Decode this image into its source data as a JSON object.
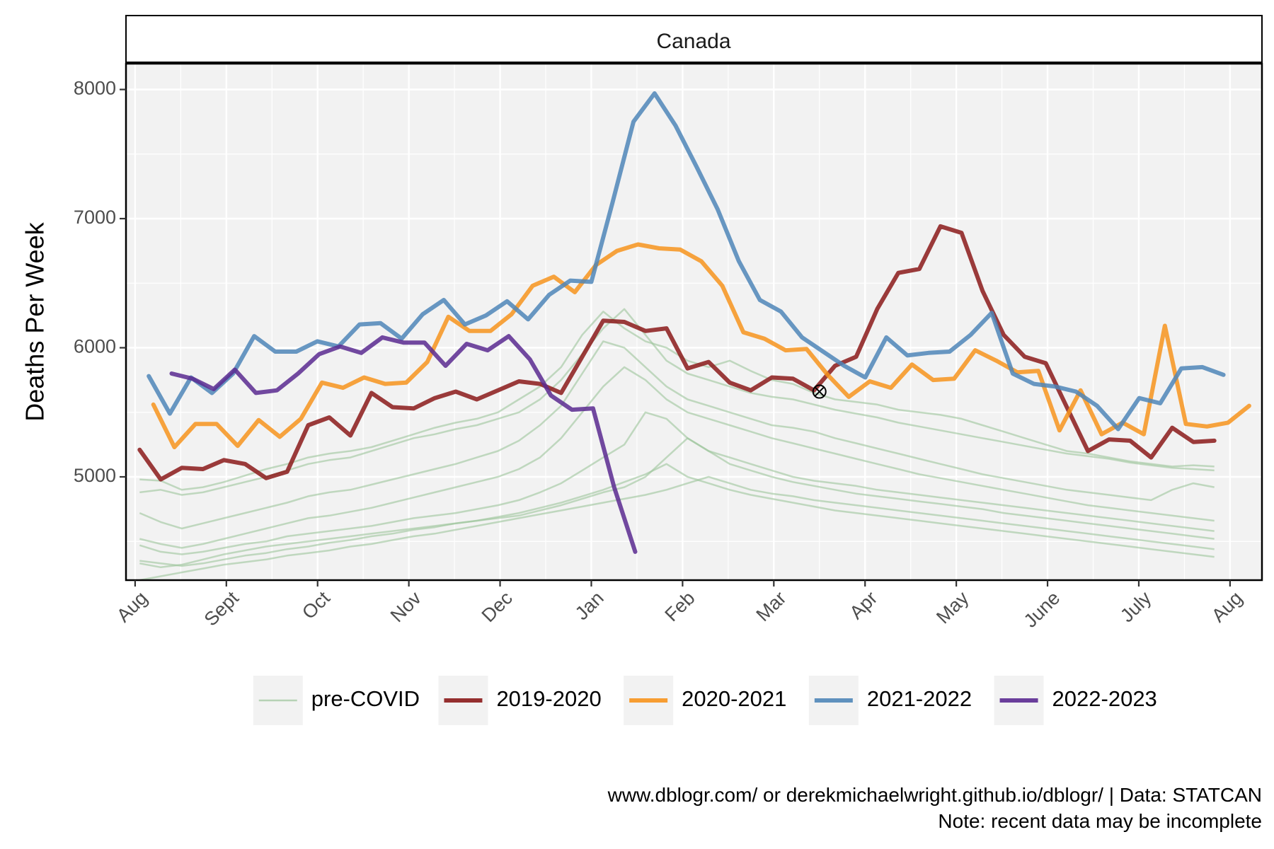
{
  "chart_data": {
    "type": "line",
    "facet_title": "Canada",
    "ylabel": "Deaths Per Week",
    "xlabel": "",
    "ylim": [
      4200,
      8200
    ],
    "yticks": [
      5000,
      6000,
      7000,
      8000
    ],
    "xlim": [
      -0.1,
      12.35
    ],
    "x_month_ticks": [
      {
        "pos": 0,
        "label": "Aug"
      },
      {
        "pos": 1,
        "label": "Sept"
      },
      {
        "pos": 2,
        "label": "Oct"
      },
      {
        "pos": 3,
        "label": "Nov"
      },
      {
        "pos": 4,
        "label": "Dec"
      },
      {
        "pos": 5,
        "label": "Jan"
      },
      {
        "pos": 6,
        "label": "Feb"
      },
      {
        "pos": 7,
        "label": "Mar"
      },
      {
        "pos": 8,
        "label": "Apr"
      },
      {
        "pos": 9,
        "label": "May"
      },
      {
        "pos": 10,
        "label": "June"
      },
      {
        "pos": 11,
        "label": "July"
      },
      {
        "pos": 12,
        "label": "Aug"
      }
    ],
    "grid": true,
    "legend_position": "bottom",
    "legend": [
      {
        "label": "pre-COVID",
        "color": "#9dc49b"
      },
      {
        "label": "2019-2020",
        "color": "#8b1a1a"
      },
      {
        "label": "2020-2021",
        "color": "#f7941d"
      },
      {
        "label": "2021-2022",
        "color": "#4f86b8"
      },
      {
        "label": "2022-2023",
        "color": "#5b2a91"
      }
    ],
    "pre_covid_series": [
      {
        "x0": 0.05,
        "values": [
          4980,
          4970,
          4900,
          4920,
          4960,
          5010,
          5060,
          5100,
          5150,
          5180,
          5200,
          5230,
          5280,
          5330,
          5380,
          5420,
          5450,
          5500,
          5600,
          5700,
          5850,
          6100,
          6280,
          6150,
          6050,
          6000,
          5900,
          5850,
          5900,
          5820,
          5750,
          5720,
          5650,
          5600,
          5580,
          5560,
          5520,
          5500,
          5480,
          5450,
          5400,
          5350,
          5300,
          5250,
          5200,
          5180,
          5150,
          5120,
          5100,
          5080,
          5090,
          5080
        ]
      },
      {
        "x0": 0.05,
        "values": [
          4880,
          4900,
          4860,
          4880,
          4920,
          4960,
          5000,
          5050,
          5100,
          5130,
          5150,
          5200,
          5250,
          5300,
          5330,
          5370,
          5400,
          5450,
          5500,
          5600,
          5750,
          5950,
          6150,
          6300,
          6100,
          5900,
          5800,
          5750,
          5700,
          5650,
          5620,
          5600,
          5560,
          5520,
          5490,
          5460,
          5420,
          5390,
          5360,
          5330,
          5300,
          5270,
          5240,
          5210,
          5180,
          5160,
          5140,
          5110,
          5090,
          5070,
          5060,
          5050
        ]
      },
      {
        "x0": 0.05,
        "values": [
          4720,
          4650,
          4600,
          4640,
          4680,
          4720,
          4760,
          4800,
          4850,
          4880,
          4900,
          4940,
          4980,
          5020,
          5060,
          5100,
          5150,
          5200,
          5280,
          5400,
          5550,
          5800,
          6050,
          6000,
          5850,
          5700,
          5600,
          5550,
          5500,
          5450,
          5400,
          5380,
          5350,
          5300,
          5260,
          5220,
          5180,
          5140,
          5100,
          5060,
          5020,
          4990,
          4960,
          4930,
          4900,
          4880,
          4860,
          4840,
          4820,
          4900,
          4950,
          4920
        ]
      },
      {
        "x0": 0.05,
        "values": [
          4520,
          4480,
          4450,
          4480,
          4520,
          4560,
          4600,
          4640,
          4680,
          4700,
          4730,
          4760,
          4800,
          4840,
          4880,
          4920,
          4960,
          5000,
          5060,
          5150,
          5300,
          5500,
          5700,
          5850,
          5750,
          5600,
          5500,
          5450,
          5400,
          5350,
          5300,
          5260,
          5220,
          5180,
          5140,
          5100,
          5060,
          5020,
          4990,
          4960,
          4930,
          4900,
          4870,
          4840,
          4810,
          4780,
          4760,
          4740,
          4720,
          4700,
          4680,
          4660
        ]
      },
      {
        "x0": 0.05,
        "values": [
          4470,
          4420,
          4400,
          4420,
          4450,
          4480,
          4500,
          4540,
          4560,
          4580,
          4600,
          4620,
          4650,
          4680,
          4700,
          4720,
          4750,
          4780,
          4820,
          4880,
          4950,
          5050,
          5150,
          5250,
          5500,
          5450,
          5300,
          5200,
          5150,
          5100,
          5050,
          5000,
          4970,
          4950,
          4930,
          4900,
          4880,
          4860,
          4840,
          4820,
          4800,
          4780,
          4760,
          4740,
          4720,
          4700,
          4680,
          4660,
          4640,
          4620,
          4600,
          4580
        ]
      },
      {
        "x0": 0.05,
        "values": [
          4330,
          4300,
          4320,
          4360,
          4400,
          4430,
          4460,
          4480,
          4500,
          4520,
          4540,
          4560,
          4580,
          4600,
          4620,
          4640,
          4660,
          4680,
          4700,
          4740,
          4780,
          4830,
          4880,
          4920,
          5000,
          5150,
          5300,
          5200,
          5100,
          5050,
          5000,
          4960,
          4930,
          4900,
          4870,
          4850,
          4830,
          4810,
          4790,
          4770,
          4750,
          4720,
          4700,
          4680,
          4660,
          4640,
          4620,
          4600,
          4580,
          4560,
          4540,
          4520
        ]
      },
      {
        "x0": 0.05,
        "values": [
          4200,
          4230,
          4260,
          4290,
          4320,
          4340,
          4360,
          4390,
          4410,
          4430,
          4460,
          4480,
          4510,
          4540,
          4560,
          4590,
          4620,
          4650,
          4680,
          4710,
          4740,
          4770,
          4800,
          4830,
          4860,
          4900,
          4950,
          5000,
          4950,
          4900,
          4870,
          4850,
          4820,
          4800,
          4780,
          4760,
          4740,
          4720,
          4700,
          4680,
          4660,
          4640,
          4620,
          4600,
          4580,
          4560,
          4540,
          4520,
          4500,
          4480,
          4460,
          4440
        ]
      },
      {
        "x0": 0.05,
        "values": [
          4350,
          4330,
          4310,
          4330,
          4360,
          4390,
          4410,
          4440,
          4460,
          4490,
          4510,
          4540,
          4560,
          4590,
          4610,
          4640,
          4660,
          4690,
          4720,
          4760,
          4800,
          4850,
          4900,
          4960,
          5020,
          5100,
          5000,
          4950,
          4900,
          4860,
          4830,
          4800,
          4770,
          4740,
          4720,
          4700,
          4680,
          4660,
          4640,
          4620,
          4600,
          4580,
          4560,
          4540,
          4520,
          4500,
          4480,
          4460,
          4440,
          4420,
          4400,
          4380
        ]
      }
    ],
    "series": [
      {
        "name": "2019-2020",
        "x0": 0.05,
        "values": [
          5210,
          4980,
          5070,
          5060,
          5130,
          5100,
          4990,
          5040,
          5400,
          5460,
          5320,
          5650,
          5540,
          5530,
          5610,
          5660,
          5600,
          5670,
          5740,
          5720,
          5650,
          5930,
          6210,
          6200,
          6130,
          6150,
          5840,
          5890,
          5730,
          5670,
          5770,
          5760,
          5670,
          5860,
          5930,
          6300,
          6580,
          6610,
          6940,
          6890,
          6440,
          6100,
          5930,
          5880,
          5540,
          5200,
          5290,
          5280,
          5150,
          5380,
          5270,
          5280
        ]
      },
      {
        "name": "2020-2021",
        "x0": 0.2,
        "values": [
          5560,
          5230,
          5410,
          5410,
          5240,
          5440,
          5310,
          5450,
          5730,
          5690,
          5770,
          5720,
          5730,
          5890,
          6240,
          6130,
          6130,
          6260,
          6480,
          6550,
          6430,
          6640,
          6750,
          6800,
          6770,
          6760,
          6670,
          6480,
          6120,
          6070,
          5980,
          5990,
          5790,
          5620,
          5740,
          5690,
          5870,
          5750,
          5760,
          5980,
          5900,
          5810,
          5820,
          5360,
          5670,
          5330,
          5420,
          5330,
          6170,
          5410,
          5390,
          5420,
          5550
        ]
      },
      {
        "name": "2021-2022",
        "x0": 0.15,
        "values": [
          5780,
          5490,
          5770,
          5650,
          5800,
          6090,
          5970,
          5970,
          6050,
          6010,
          6180,
          6190,
          6070,
          6260,
          6370,
          6180,
          6250,
          6360,
          6220,
          6410,
          6520,
          6510,
          7120,
          7750,
          7970,
          7720,
          7400,
          7070,
          6670,
          6370,
          6280,
          6080,
          5970,
          5860,
          5770,
          6080,
          5940,
          5960,
          5970,
          6100,
          6270,
          5800,
          5720,
          5700,
          5660,
          5550,
          5370,
          5610,
          5570,
          5840,
          5850,
          5790
        ]
      },
      {
        "name": "2022-2023",
        "x0": 0.4,
        "values": [
          5800,
          5760,
          5680,
          5830,
          5650,
          5670,
          5800,
          5950,
          6010,
          5960,
          6080,
          6040,
          6040,
          5860,
          6030,
          5980,
          6090,
          5910,
          5630,
          5520,
          5530,
          4920,
          4420
        ]
      }
    ],
    "marker": {
      "x": 7.5,
      "y": 5660,
      "symbol": "circle-cross"
    },
    "caption_lines": [
      "www.dblogr.com/ or derekmichaelwright.github.io/dblogr/ | Data: STATCAN",
      "Note: recent data may be incomplete"
    ]
  }
}
